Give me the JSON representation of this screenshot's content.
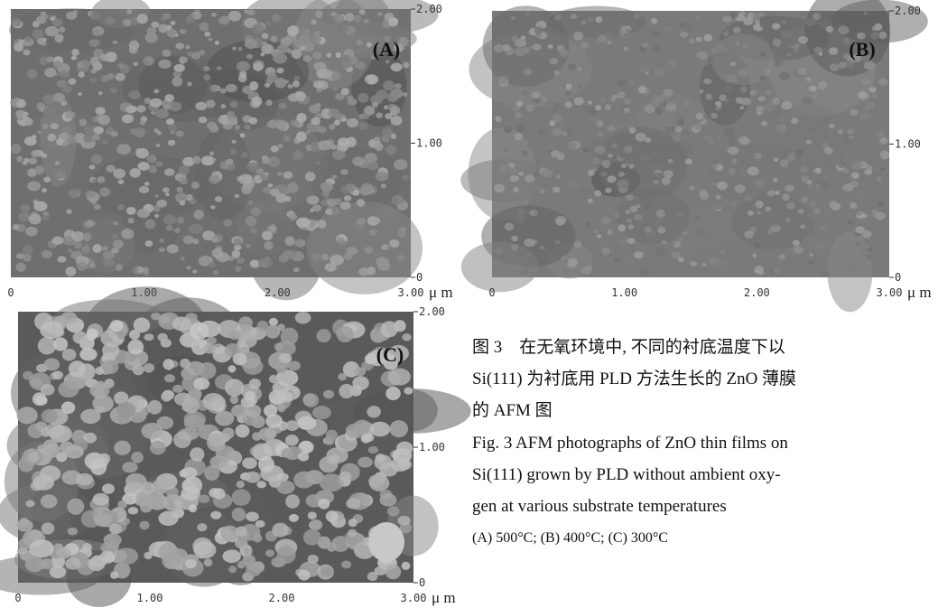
{
  "panels": [
    {
      "label": "(A)",
      "x_ticks": [
        "0",
        "1.00",
        "2.00",
        "3.00"
      ],
      "y_ticks": [
        "2.00",
        "1.00",
        "0"
      ],
      "unit": "μ m"
    },
    {
      "label": "(B)",
      "x_ticks": [
        "0",
        "1.00",
        "2.00",
        "3.00"
      ],
      "y_ticks": [
        "2.00",
        "1.00",
        "0"
      ],
      "unit": "μ m"
    },
    {
      "label": "(C)",
      "x_ticks": [
        "0",
        "1.00",
        "2.00",
        "3.00"
      ],
      "y_ticks": [
        "2.00",
        "1.00",
        "0"
      ],
      "unit": "μ m"
    }
  ],
  "caption": {
    "zh": [
      "图 3　在无氧环境中, 不同的衬底温度下以",
      "Si(111) 为衬底用 PLD 方法生长的 ZnO 薄膜",
      "的 AFM 图"
    ],
    "en": [
      "Fig. 3  AFM photographs of ZnO thin films on",
      "Si(111) grown by PLD without ambient oxy-",
      "gen at various substrate temperatures"
    ],
    "conditions": "(A) 500°C; (B) 400°C; (C) 300°C"
  }
}
